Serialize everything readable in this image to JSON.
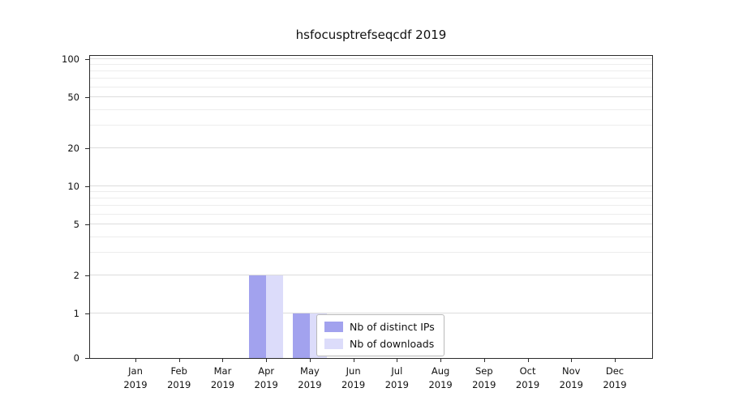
{
  "title": "hsfocusptrefseqcdf 2019",
  "chart_data": {
    "type": "bar",
    "title": "hsfocusptrefseqcdf 2019",
    "xlabel": "",
    "ylabel": "",
    "scale": "symlog",
    "ylim": [
      0,
      100
    ],
    "yticks": [
      0,
      1,
      2,
      5,
      10,
      20,
      50,
      100
    ],
    "minor_gridlines": [
      3,
      4,
      6,
      7,
      8,
      9,
      30,
      40,
      60,
      70,
      80,
      90
    ],
    "grid": "horizontal",
    "year": "2019",
    "categories": [
      "Jan",
      "Feb",
      "Mar",
      "Apr",
      "May",
      "Jun",
      "Jul",
      "Aug",
      "Sep",
      "Oct",
      "Nov",
      "Dec"
    ],
    "series": [
      {
        "name": "Nb of distinct IPs",
        "color": "#a2a2ee",
        "values": [
          0,
          0,
          0,
          2,
          1,
          0,
          0,
          0,
          0,
          0,
          0,
          0
        ]
      },
      {
        "name": "Nb of downloads",
        "color": "#dcdcfa",
        "values": [
          0,
          0,
          0,
          2,
          1,
          0,
          0,
          0,
          0,
          0,
          0,
          0
        ]
      }
    ],
    "legend_position": "inside-bottom-center"
  },
  "colors": {
    "background": "#ffffff",
    "axis": "#2b2b2b",
    "grid_major": "#dcdcdc",
    "grid_minor": "#ededed"
  }
}
